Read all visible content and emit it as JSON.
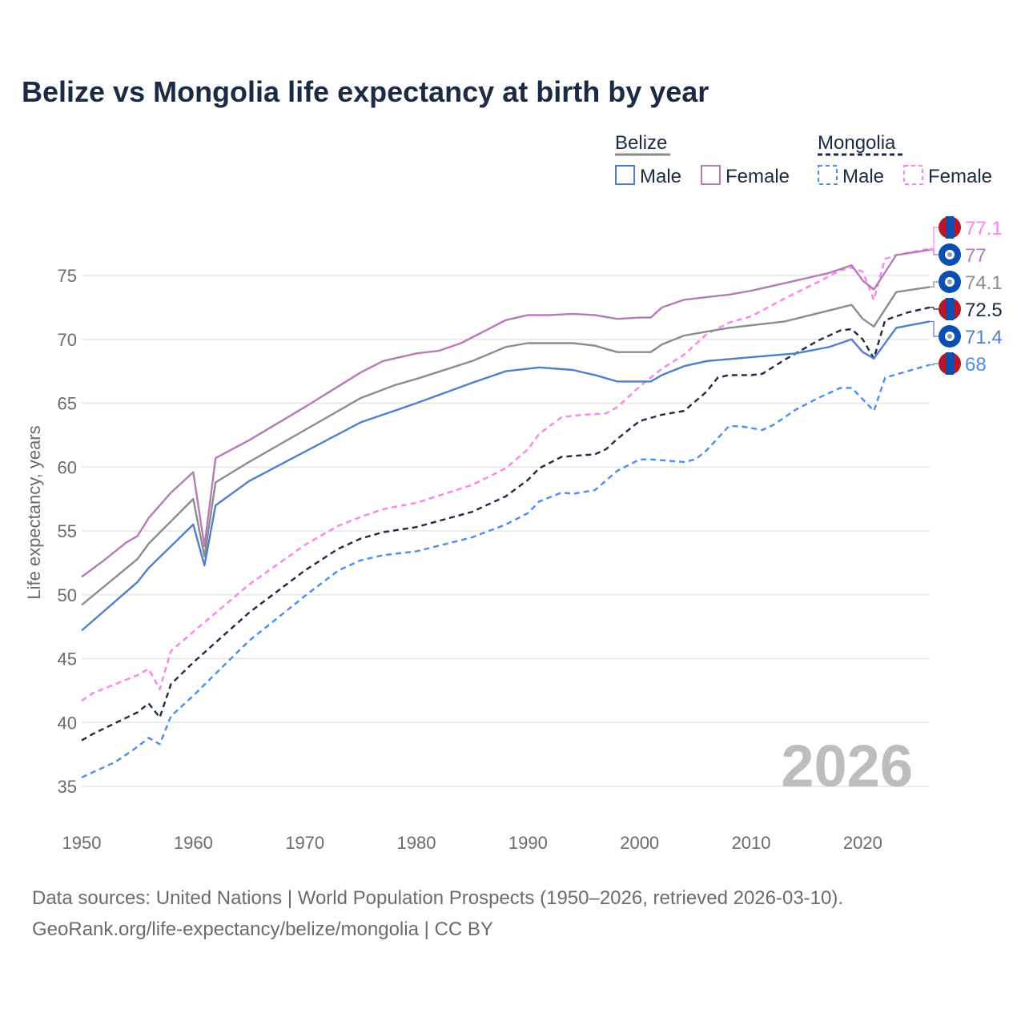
{
  "title": "Belize vs Mongolia life expectancy at birth by year",
  "watermark_year": "2026",
  "sources": {
    "line1": "Data sources: United Nations | World Population Prospects (1950–2026, retrieved 2026-03-10).",
    "line2": "GeoRank.org/life-expectancy/belize/mongolia | CC BY"
  },
  "legend": {
    "groups": [
      {
        "label": "Belize",
        "total_color": "#8c8c8c",
        "dashed": false,
        "items": [
          {
            "label": "Male",
            "color": "#4f7ecb"
          },
          {
            "label": "Female",
            "color": "#b57ab8"
          }
        ]
      },
      {
        "label": "Mongolia",
        "total_color": "#1c2a44",
        "dashed": true,
        "items": [
          {
            "label": "Male",
            "color": "#4a8ff0"
          },
          {
            "label": "Female",
            "color": "#ff80f0"
          }
        ]
      }
    ]
  },
  "chart_data": {
    "type": "line",
    "title": "Belize vs Mongolia life expectancy at birth by year",
    "xlabel": "",
    "ylabel": "Life expectancy, years",
    "xlim": [
      1950,
      2026
    ],
    "ylim": [
      33,
      78
    ],
    "xticks": [
      1950,
      1960,
      1970,
      1980,
      1990,
      2000,
      2010,
      2020
    ],
    "yticks": [
      35,
      40,
      45,
      50,
      55,
      60,
      65,
      70,
      75
    ],
    "grid": true,
    "legend_position": "top-right",
    "series": [
      {
        "name": "Mongolia Female",
        "country": "Mongolia",
        "flag": "mongolia",
        "color": "#ff80f0",
        "dashed": true,
        "end_label": "77.1",
        "points": [
          [
            1950,
            41.7
          ],
          [
            1951,
            42.3
          ],
          [
            1955,
            43.7
          ],
          [
            1956,
            44.2
          ],
          [
            1957,
            42.6
          ],
          [
            1958,
            45.6
          ],
          [
            1960,
            47.1
          ],
          [
            1965,
            50.8
          ],
          [
            1970,
            53.9
          ],
          [
            1973,
            55.4
          ],
          [
            1975,
            56.1
          ],
          [
            1977,
            56.7
          ],
          [
            1980,
            57.2
          ],
          [
            1985,
            58.6
          ],
          [
            1988,
            59.9
          ],
          [
            1990,
            61.4
          ],
          [
            1991,
            62.6
          ],
          [
            1993,
            63.9
          ],
          [
            1995,
            64.1
          ],
          [
            1997,
            64.2
          ],
          [
            1998,
            64.7
          ],
          [
            2000,
            66.3
          ],
          [
            2002,
            67.7
          ],
          [
            2004,
            68.8
          ],
          [
            2006,
            70.4
          ],
          [
            2008,
            71.3
          ],
          [
            2010,
            71.8
          ],
          [
            2013,
            73.2
          ],
          [
            2016,
            74.5
          ],
          [
            2018,
            75.4
          ],
          [
            2019,
            75.6
          ],
          [
            2020,
            75.3
          ],
          [
            2021,
            73.1
          ],
          [
            2022,
            76.3
          ],
          [
            2023,
            76.6
          ],
          [
            2026,
            77.1
          ]
        ]
      },
      {
        "name": "Belize Female",
        "country": "Belize",
        "flag": "belize",
        "color": "#b57ab8",
        "dashed": false,
        "end_label": "77",
        "points": [
          [
            1950,
            51.4
          ],
          [
            1952,
            52.7
          ],
          [
            1954,
            54.1
          ],
          [
            1955,
            54.6
          ],
          [
            1956,
            56.0
          ],
          [
            1958,
            58.0
          ],
          [
            1960,
            59.6
          ],
          [
            1961,
            53.8
          ],
          [
            1962,
            60.7
          ],
          [
            1965,
            62.1
          ],
          [
            1970,
            64.7
          ],
          [
            1975,
            67.4
          ],
          [
            1977,
            68.3
          ],
          [
            1978,
            68.5
          ],
          [
            1980,
            68.9
          ],
          [
            1982,
            69.1
          ],
          [
            1984,
            69.7
          ],
          [
            1986,
            70.6
          ],
          [
            1988,
            71.5
          ],
          [
            1990,
            71.9
          ],
          [
            1992,
            71.9
          ],
          [
            1994,
            72.0
          ],
          [
            1996,
            71.9
          ],
          [
            1998,
            71.6
          ],
          [
            2000,
            71.7
          ],
          [
            2001,
            71.7
          ],
          [
            2002,
            72.5
          ],
          [
            2004,
            73.1
          ],
          [
            2006,
            73.3
          ],
          [
            2008,
            73.5
          ],
          [
            2010,
            73.8
          ],
          [
            2014,
            74.6
          ],
          [
            2017,
            75.2
          ],
          [
            2019,
            75.8
          ],
          [
            2020,
            74.6
          ],
          [
            2021,
            73.9
          ],
          [
            2023,
            76.6
          ],
          [
            2026,
            77.0
          ]
        ]
      },
      {
        "name": "Belize",
        "country": "Belize",
        "flag": "belize",
        "color": "#8c8c8c",
        "dashed": false,
        "end_label": "74.1",
        "points": [
          [
            1950,
            49.2
          ],
          [
            1955,
            52.8
          ],
          [
            1956,
            54.0
          ],
          [
            1960,
            57.5
          ],
          [
            1961,
            53.0
          ],
          [
            1962,
            58.8
          ],
          [
            1965,
            60.4
          ],
          [
            1970,
            62.9
          ],
          [
            1975,
            65.4
          ],
          [
            1978,
            66.4
          ],
          [
            1980,
            66.9
          ],
          [
            1985,
            68.3
          ],
          [
            1988,
            69.4
          ],
          [
            1990,
            69.7
          ],
          [
            1994,
            69.7
          ],
          [
            1996,
            69.5
          ],
          [
            1998,
            69.0
          ],
          [
            2000,
            69.0
          ],
          [
            2001,
            69.0
          ],
          [
            2002,
            69.6
          ],
          [
            2004,
            70.3
          ],
          [
            2008,
            70.9
          ],
          [
            2013,
            71.4
          ],
          [
            2019,
            72.7
          ],
          [
            2020,
            71.6
          ],
          [
            2021,
            71.0
          ],
          [
            2023,
            73.7
          ],
          [
            2026,
            74.1
          ]
        ]
      },
      {
        "name": "Mongolia",
        "country": "Mongolia",
        "flag": "mongolia",
        "color": "#1c2a44",
        "dashed": true,
        "end_label": "72.5",
        "points": [
          [
            1950,
            38.6
          ],
          [
            1951,
            39.1
          ],
          [
            1955,
            40.8
          ],
          [
            1956,
            41.5
          ],
          [
            1957,
            40.4
          ],
          [
            1958,
            43.0
          ],
          [
            1960,
            44.7
          ],
          [
            1965,
            48.6
          ],
          [
            1970,
            51.9
          ],
          [
            1973,
            53.6
          ],
          [
            1975,
            54.4
          ],
          [
            1977,
            54.9
          ],
          [
            1980,
            55.3
          ],
          [
            1985,
            56.5
          ],
          [
            1988,
            57.7
          ],
          [
            1990,
            59.0
          ],
          [
            1991,
            59.9
          ],
          [
            1993,
            60.8
          ],
          [
            1996,
            61.0
          ],
          [
            1997,
            61.4
          ],
          [
            1998,
            62.2
          ],
          [
            2000,
            63.6
          ],
          [
            2002,
            64.1
          ],
          [
            2004,
            64.4
          ],
          [
            2006,
            65.9
          ],
          [
            2007,
            67.0
          ],
          [
            2008,
            67.2
          ],
          [
            2010,
            67.2
          ],
          [
            2011,
            67.3
          ],
          [
            2013,
            68.4
          ],
          [
            2016,
            69.9
          ],
          [
            2018,
            70.7
          ],
          [
            2019,
            70.8
          ],
          [
            2020,
            70.0
          ],
          [
            2021,
            68.5
          ],
          [
            2022,
            71.5
          ],
          [
            2024,
            72.1
          ],
          [
            2026,
            72.5
          ]
        ]
      },
      {
        "name": "Belize Male",
        "country": "Belize",
        "flag": "belize",
        "color": "#4f7ecb",
        "dashed": false,
        "end_label": "71.4",
        "points": [
          [
            1950,
            47.2
          ],
          [
            1955,
            51.0
          ],
          [
            1956,
            52.1
          ],
          [
            1960,
            55.5
          ],
          [
            1961,
            52.3
          ],
          [
            1962,
            57.0
          ],
          [
            1965,
            58.9
          ],
          [
            1970,
            61.2
          ],
          [
            1975,
            63.5
          ],
          [
            1978,
            64.4
          ],
          [
            1980,
            65.0
          ],
          [
            1985,
            66.6
          ],
          [
            1988,
            67.5
          ],
          [
            1990,
            67.7
          ],
          [
            1991,
            67.8
          ],
          [
            1994,
            67.6
          ],
          [
            1996,
            67.2
          ],
          [
            1998,
            66.7
          ],
          [
            2001,
            66.7
          ],
          [
            2002,
            67.2
          ],
          [
            2004,
            67.9
          ],
          [
            2006,
            68.3
          ],
          [
            2010,
            68.6
          ],
          [
            2014,
            68.9
          ],
          [
            2017,
            69.4
          ],
          [
            2019,
            70.0
          ],
          [
            2020,
            69.0
          ],
          [
            2021,
            68.5
          ],
          [
            2023,
            70.9
          ],
          [
            2026,
            71.4
          ]
        ]
      },
      {
        "name": "Mongolia Male",
        "country": "Mongolia",
        "flag": "mongolia",
        "color": "#4a8ff0",
        "dashed": true,
        "end_label": "68",
        "points": [
          [
            1950,
            35.7
          ],
          [
            1953,
            36.9
          ],
          [
            1955,
            38.1
          ],
          [
            1956,
            38.8
          ],
          [
            1957,
            38.3
          ],
          [
            1958,
            40.5
          ],
          [
            1960,
            42.1
          ],
          [
            1965,
            46.4
          ],
          [
            1970,
            49.9
          ],
          [
            1973,
            51.9
          ],
          [
            1975,
            52.7
          ],
          [
            1977,
            53.1
          ],
          [
            1980,
            53.4
          ],
          [
            1985,
            54.5
          ],
          [
            1988,
            55.5
          ],
          [
            1990,
            56.4
          ],
          [
            1991,
            57.3
          ],
          [
            1993,
            58.0
          ],
          [
            1994,
            57.9
          ],
          [
            1996,
            58.2
          ],
          [
            1998,
            59.7
          ],
          [
            2000,
            60.6
          ],
          [
            2001,
            60.6
          ],
          [
            2004,
            60.4
          ],
          [
            2005,
            60.6
          ],
          [
            2006,
            61.3
          ],
          [
            2008,
            63.2
          ],
          [
            2009,
            63.2
          ],
          [
            2011,
            62.9
          ],
          [
            2012,
            63.3
          ],
          [
            2014,
            64.5
          ],
          [
            2016,
            65.4
          ],
          [
            2018,
            66.2
          ],
          [
            2019,
            66.2
          ],
          [
            2021,
            64.4
          ],
          [
            2022,
            67.0
          ],
          [
            2024,
            67.5
          ],
          [
            2026,
            68.0
          ]
        ]
      }
    ]
  }
}
